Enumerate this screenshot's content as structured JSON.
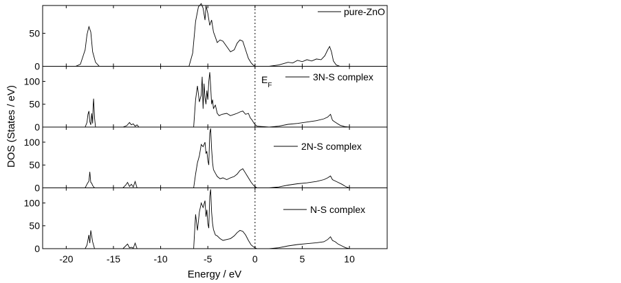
{
  "chart_data": {
    "type": "line",
    "xlabel": "Energy / eV",
    "ylabel": "DOS (States / eV)",
    "xlim": [
      -22.5,
      14
    ],
    "x_ticks": [
      -20,
      -15,
      -10,
      -5,
      0,
      5,
      10
    ],
    "x_tick_labels": [
      "-20",
      "-15",
      "-10",
      "-5",
      "0",
      "5",
      "10"
    ],
    "fermi_label": "E",
    "fermi_label_sub": "F",
    "fermi_level": 0,
    "panels": [
      {
        "name": "pure-ZnO",
        "ylim": [
          0,
          90
        ],
        "y_ticks": [
          0,
          50
        ],
        "y_tick_labels": [
          "0",
          "50"
        ],
        "x": [
          -22.5,
          -19,
          -18.5,
          -18.0,
          -17.8,
          -17.6,
          -17.4,
          -17.2,
          -16.9,
          -16.5,
          -15,
          -10,
          -7,
          -6.6,
          -6.3,
          -6.0,
          -5.7,
          -5.5,
          -5.3,
          -5.2,
          -5.0,
          -4.8,
          -4.6,
          -4.4,
          -4.2,
          -4.0,
          -3.7,
          -3.4,
          -3.0,
          -2.6,
          -2.2,
          -1.9,
          -1.6,
          -1.3,
          -1.0,
          -0.7,
          -0.4,
          -0.2,
          0.0,
          0.5,
          1.5,
          2.5,
          3.0,
          3.5,
          4.0,
          4.5,
          5.0,
          5.5,
          6.0,
          6.5,
          7.0,
          7.4,
          7.7,
          7.9,
          8.1,
          8.3,
          8.6,
          9.0,
          9.5,
          10,
          11
        ],
        "values": [
          0,
          0,
          3,
          25,
          48,
          60,
          52,
          22,
          6,
          0,
          0,
          0,
          0,
          20,
          68,
          90,
          95,
          88,
          70,
          92,
          80,
          62,
          70,
          52,
          44,
          36,
          40,
          38,
          30,
          22,
          25,
          35,
          40,
          38,
          25,
          12,
          5,
          2,
          0,
          0,
          0,
          2,
          4,
          6,
          5,
          9,
          7,
          10,
          8,
          11,
          10,
          16,
          25,
          30,
          22,
          8,
          2,
          0,
          0,
          0,
          0
        ]
      },
      {
        "name": "3N-S complex",
        "ylim": [
          0,
          130
        ],
        "y_ticks": [
          0,
          50,
          100
        ],
        "y_tick_labels": [
          "0",
          "50",
          "100"
        ],
        "x": [
          -22.5,
          -18,
          -17.8,
          -17.7,
          -17.6,
          -17.5,
          -17.4,
          -17.3,
          -17.2,
          -17.15,
          -17.1,
          -17.0,
          -16.9,
          -14,
          -13.6,
          -13.3,
          -13.1,
          -12.9,
          -12.7,
          -12.5,
          -12.3,
          -7,
          -6.5,
          -6.3,
          -6.1,
          -5.9,
          -5.7,
          -5.6,
          -5.5,
          -5.4,
          -5.3,
          -5.2,
          -5.1,
          -5.0,
          -4.9,
          -4.8,
          -4.7,
          -4.6,
          -4.5,
          -4.4,
          -4.3,
          -4.2,
          -4.0,
          -3.8,
          -3.5,
          -3.0,
          -2.6,
          -2.2,
          -1.9,
          -1.6,
          -1.3,
          -1.0,
          -0.7,
          -0.5,
          -0.3,
          -0.1,
          0.2,
          1.5,
          2.5,
          3.5,
          4.5,
          5.5,
          6.5,
          7.3,
          7.7,
          8.0,
          8.2,
          8.4,
          8.7,
          9.0,
          9.5,
          10,
          11
        ],
        "values": [
          0,
          0,
          10,
          28,
          35,
          12,
          5,
          30,
          8,
          45,
          62,
          20,
          0,
          0,
          3,
          10,
          5,
          7,
          2,
          5,
          0,
          0,
          0,
          60,
          90,
          55,
          70,
          110,
          40,
          95,
          65,
          50,
          80,
          60,
          100,
          120,
          90,
          50,
          60,
          40,
          45,
          48,
          30,
          25,
          28,
          30,
          25,
          28,
          30,
          33,
          35,
          28,
          30,
          20,
          15,
          8,
          2,
          0,
          2,
          6,
          8,
          11,
          14,
          18,
          22,
          28,
          15,
          12,
          8,
          4,
          1,
          0,
          0
        ]
      },
      {
        "name": "2N-S complex",
        "ylim": [
          0,
          130
        ],
        "y_ticks": [
          0,
          50,
          100
        ],
        "y_tick_labels": [
          "0",
          "50",
          "100"
        ],
        "x": [
          -22.5,
          -18,
          -17.8,
          -17.6,
          -17.5,
          -17.4,
          -17.3,
          -17.2,
          -17.0,
          -14,
          -13.7,
          -13.5,
          -13.3,
          -13.1,
          -12.9,
          -12.7,
          -12.5,
          -7,
          -6.5,
          -6.3,
          -6.1,
          -5.9,
          -5.7,
          -5.5,
          -5.3,
          -5.2,
          -5.1,
          -5.0,
          -4.9,
          -4.8,
          -4.7,
          -4.6,
          -4.5,
          -4.4,
          -4.2,
          -4.0,
          -3.7,
          -3.4,
          -3.0,
          -2.6,
          -2.2,
          -1.9,
          -1.6,
          -1.3,
          -1.0,
          -0.7,
          -0.4,
          -0.1,
          0.2,
          1.5,
          2.5,
          3.5,
          4.5,
          5.5,
          6.5,
          7.3,
          7.7,
          8.0,
          8.2,
          8.5,
          8.8,
          9.2,
          9.6,
          10,
          11
        ],
        "values": [
          0,
          0,
          8,
          15,
          35,
          12,
          10,
          5,
          0,
          0,
          6,
          12,
          3,
          8,
          2,
          14,
          0,
          0,
          0,
          30,
          55,
          70,
          95,
          90,
          100,
          75,
          80,
          60,
          50,
          120,
          130,
          85,
          55,
          40,
          32,
          25,
          20,
          22,
          18,
          22,
          25,
          30,
          38,
          42,
          32,
          22,
          12,
          4,
          0,
          0,
          2,
          6,
          9,
          11,
          14,
          18,
          22,
          26,
          18,
          15,
          12,
          8,
          3,
          0,
          0
        ]
      },
      {
        "name": "N-S complex",
        "ylim": [
          0,
          130
        ],
        "y_ticks": [
          0,
          50,
          100
        ],
        "y_tick_labels": [
          "0",
          "50",
          "100"
        ],
        "x": [
          -22.5,
          -18,
          -17.8,
          -17.6,
          -17.5,
          -17.4,
          -17.2,
          -17.0,
          -14,
          -13.5,
          -13.3,
          -13.1,
          -12.9,
          -12.7,
          -12.5,
          -7,
          -6.5,
          -6.3,
          -6.1,
          -5.9,
          -5.7,
          -5.5,
          -5.3,
          -5.2,
          -5.1,
          -5.0,
          -4.9,
          -4.8,
          -4.7,
          -4.6,
          -4.5,
          -4.4,
          -4.2,
          -4.0,
          -3.7,
          -3.4,
          -3.0,
          -2.6,
          -2.2,
          -1.9,
          -1.6,
          -1.3,
          -1.0,
          -0.7,
          -0.4,
          -0.1,
          0.2,
          1.5,
          2.5,
          3.5,
          4.5,
          5.5,
          6.5,
          7.3,
          7.7,
          8.0,
          8.2,
          8.5,
          8.8,
          9.2,
          9.6,
          10,
          11
        ],
        "values": [
          0,
          0,
          8,
          30,
          12,
          40,
          15,
          0,
          0,
          10,
          2,
          3,
          1,
          12,
          0,
          0,
          0,
          75,
          40,
          80,
          100,
          90,
          105,
          70,
          85,
          55,
          45,
          115,
          130,
          80,
          55,
          42,
          30,
          28,
          22,
          18,
          20,
          22,
          28,
          35,
          40,
          38,
          30,
          18,
          8,
          3,
          0,
          0,
          2,
          6,
          9,
          11,
          13,
          15,
          20,
          26,
          18,
          15,
          10,
          6,
          2,
          0,
          0
        ]
      }
    ]
  }
}
